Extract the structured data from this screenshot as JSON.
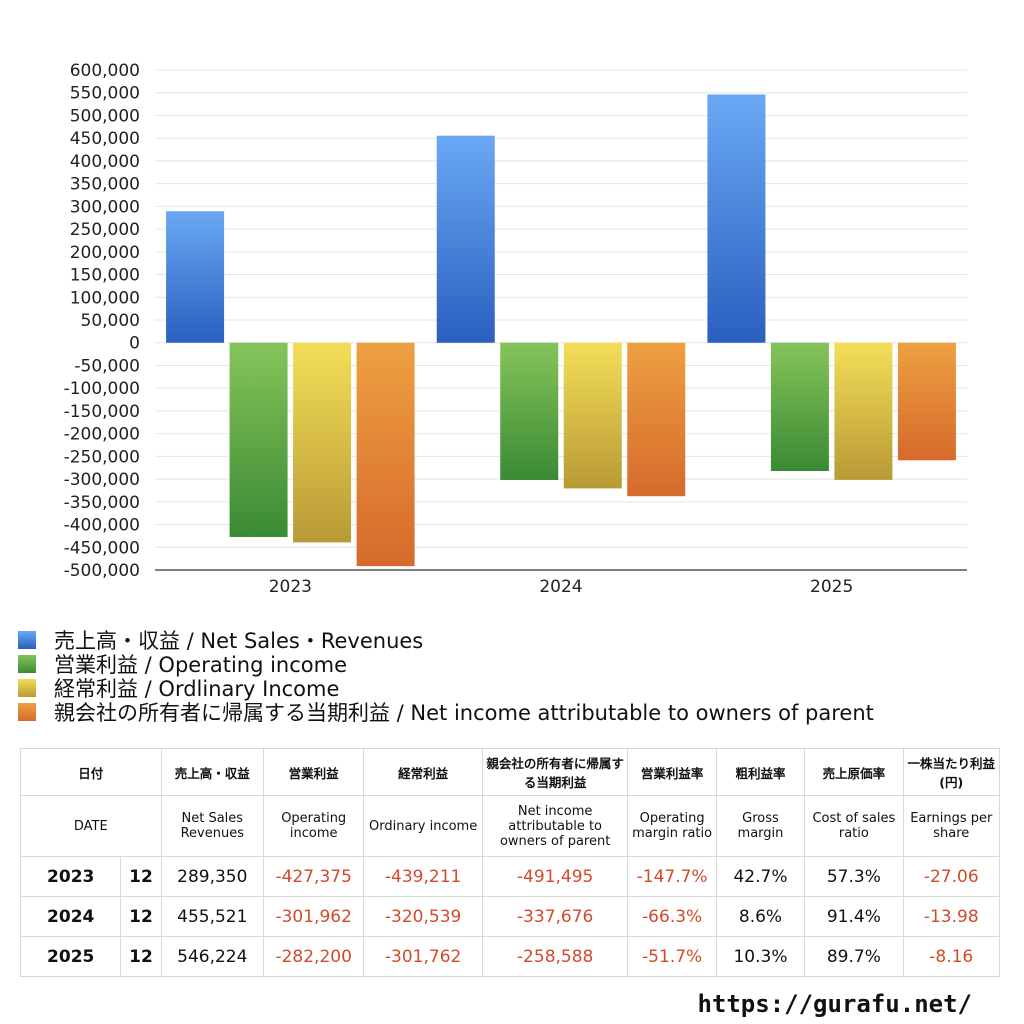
{
  "chart_data": {
    "type": "bar",
    "categories": [
      "2023",
      "2024",
      "2025"
    ],
    "series": [
      {
        "name": "売上高・収益 / Net Sales・Revenues",
        "values": [
          289350,
          455521,
          546224
        ]
      },
      {
        "name": "営業利益 / Operating income",
        "values": [
          -427375,
          -301962,
          -282200
        ]
      },
      {
        "name": "経常利益 / Ordlinary Income",
        "values": [
          -439211,
          -320539,
          -301762
        ]
      },
      {
        "name": "親会社の所有者に帰属する当期利益 / Net income attributable to owners of parent",
        "values": [
          -491495,
          -337676,
          -258588
        ]
      }
    ],
    "ylim": [
      -500000,
      600000
    ],
    "yticks": [
      "600,000",
      "550,000",
      "500,000",
      "450,000",
      "400,000",
      "350,000",
      "300,000",
      "250,000",
      "200,000",
      "150,000",
      "100,000",
      "50,000",
      "0",
      "-50,000",
      "-100,000",
      "-150,000",
      "-200,000",
      "-250,000",
      "-300,000",
      "-350,000",
      "-400,000",
      "-450,000",
      "-500,000"
    ],
    "grid": true,
    "legend_position": "bottom",
    "colors": [
      {
        "top": "#6aa8f4",
        "bottom": "#2a5fbf"
      },
      {
        "top": "#86c45a",
        "bottom": "#3a8a34"
      },
      {
        "top": "#f4de58",
        "bottom": "#b89a36"
      },
      {
        "top": "#eea042",
        "bottom": "#d56a2c"
      }
    ]
  },
  "table": {
    "header_jp": [
      "日付",
      "売上高・収益",
      "営業利益",
      "経常利益",
      "親会社の所有者に帰属する当期利益",
      "営業利益率",
      "粗利益率",
      "売上原価率",
      "一株当たり利益(円)"
    ],
    "header_en": [
      "DATE",
      "Net Sales Revenues",
      "Operating income",
      "Ordinary income",
      "Net income attributable to owners of parent",
      "Operating margin ratio",
      "Gross margin",
      "Cost of sales ratio",
      "Earnings per share"
    ],
    "rows": [
      {
        "year": "2023",
        "month": "12",
        "sales": "289,350",
        "op": "-427,375",
        "ord": "-439,211",
        "net": "-491,495",
        "opm": "-147.7%",
        "gm": "42.7%",
        "cos": "57.3%",
        "eps": "-27.06"
      },
      {
        "year": "2024",
        "month": "12",
        "sales": "455,521",
        "op": "-301,962",
        "ord": "-320,539",
        "net": "-337,676",
        "opm": "-66.3%",
        "gm": "8.6%",
        "cos": "91.4%",
        "eps": "-13.98"
      },
      {
        "year": "2025",
        "month": "12",
        "sales": "546,224",
        "op": "-282,200",
        "ord": "-301,762",
        "net": "-258,588",
        "opm": "-51.7%",
        "gm": "10.3%",
        "cos": "89.7%",
        "eps": "-8.16"
      }
    ]
  },
  "site_url": "https://gurafu.net/"
}
